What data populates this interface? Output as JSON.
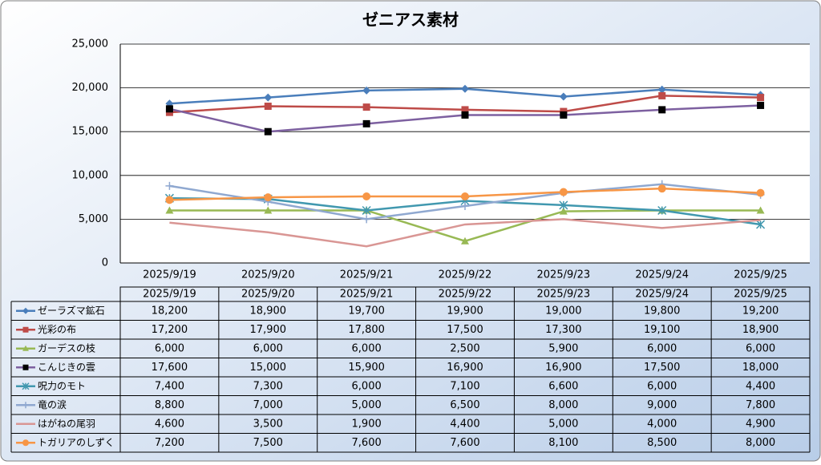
{
  "chart_data": {
    "type": "line",
    "title": "ゼニアス素材",
    "categories": [
      "2025/9/19",
      "2025/9/20",
      "2025/9/21",
      "2025/9/22",
      "2025/9/23",
      "2025/9/24",
      "2025/9/25"
    ],
    "ylim": [
      0,
      25000
    ],
    "yticks": [
      0,
      {
        "value": 5000,
        "label": "5,000"
      },
      {
        "value": 10000,
        "label": "10,000"
      },
      {
        "value": 15000,
        "label": "15,000"
      },
      {
        "value": 20000,
        "label": "20,000"
      },
      {
        "value": 25000,
        "label": "25,000"
      }
    ],
    "grid": true,
    "series": [
      {
        "name": "ゼーラズマ鉱石",
        "color": "#4a7ebb",
        "marker": "diamond",
        "values": [
          18200,
          18900,
          19700,
          19900,
          19000,
          19800,
          19200
        ],
        "value_labels": [
          "18,200",
          "18,900",
          "19,700",
          "19,900",
          "19,000",
          "19,800",
          "19,200"
        ]
      },
      {
        "name": "光彩の布",
        "color": "#be4b48",
        "marker": "square",
        "values": [
          17200,
          17900,
          17800,
          17500,
          17300,
          19100,
          18900
        ],
        "value_labels": [
          "17,200",
          "17,900",
          "17,800",
          "17,500",
          "17,300",
          "19,100",
          "18,900"
        ]
      },
      {
        "name": "ガーデスの枝",
        "color": "#98b954",
        "marker": "triangle",
        "values": [
          6000,
          6000,
          6000,
          2500,
          5900,
          6000,
          6000
        ],
        "value_labels": [
          "6,000",
          "6,000",
          "6,000",
          "2,500",
          "5,900",
          "6,000",
          "6,000"
        ]
      },
      {
        "name": "こんじきの雲",
        "color": "#7d60a0",
        "marker": "square",
        "marker_color": "#000000",
        "values": [
          17600,
          15000,
          15900,
          16900,
          16900,
          17500,
          18000
        ],
        "value_labels": [
          "17,600",
          "15,000",
          "15,900",
          "16,900",
          "16,900",
          "17,500",
          "18,000"
        ]
      },
      {
        "name": "呪力のモト",
        "color": "#4198af",
        "marker": "asterisk",
        "values": [
          7400,
          7300,
          6000,
          7100,
          6600,
          6000,
          4400
        ],
        "value_labels": [
          "7,400",
          "7,300",
          "6,000",
          "7,100",
          "6,600",
          "6,000",
          "4,400"
        ]
      },
      {
        "name": "竜の涙",
        "color": "#8fa8d0",
        "marker": "plus",
        "values": [
          8800,
          7000,
          5000,
          6500,
          8000,
          9000,
          7800
        ],
        "value_labels": [
          "8,800",
          "7,000",
          "5,000",
          "6,500",
          "8,000",
          "9,000",
          "7,800"
        ]
      },
      {
        "name": "はがねの尾羽",
        "color": "#d99694",
        "marker": "none",
        "values": [
          4600,
          3500,
          1900,
          4400,
          5000,
          4000,
          4900
        ],
        "value_labels": [
          "4,600",
          "3,500",
          "1,900",
          "4,400",
          "5,000",
          "4,000",
          "4,900"
        ]
      },
      {
        "name": "トガリアのしずく",
        "color": "#f79646",
        "marker": "circle",
        "values": [
          7200,
          7500,
          7600,
          7600,
          8100,
          8500,
          8000
        ],
        "value_labels": [
          "7,200",
          "7,500",
          "7,600",
          "7,600",
          "8,100",
          "8,500",
          "8,000"
        ]
      }
    ]
  }
}
